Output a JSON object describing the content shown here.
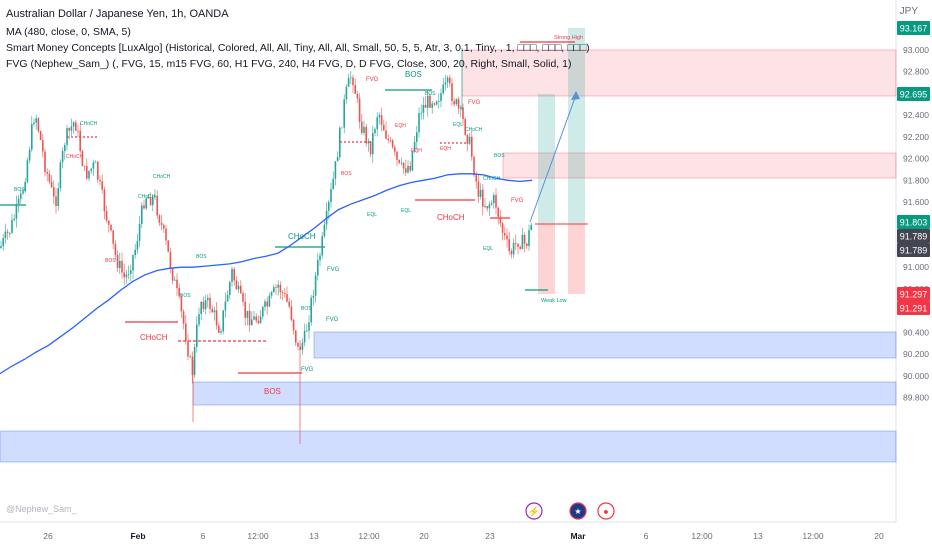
{
  "header": {
    "title": "Australian Dollar / Japanese Yen, 1h, OANDA",
    "indicator_ma": "MA (480, close, 0, SMA, 5)",
    "indicator_smc": "Smart Money Concepts [LuxAlgo] (Historical, Colored, All, All, Tiny, All, All, Small, 50, 5, 5, Atr, 3, 0.1, Tiny, , 1, □□□, □□□, □□□)",
    "indicator_fvg": "FVG (Nephew_Sam_) (, FVG, 15, m15 FVG, 60, H1 FVG, 240, H4 FVG, D, D FVG, Close, 300, 20, Right, Small, Solid, 1)"
  },
  "currency": "JPY",
  "watermark": "@Nephew_Sam_",
  "colors": {
    "bull": "#26a69a",
    "bear": "#ef5350",
    "bos_green": "#089981",
    "bos_red": "#f23645",
    "ma_line": "#2962ff",
    "fvg_blue": "rgba(41,98,255,0.22)",
    "zone_red": "rgba(242,54,69,0.15)",
    "green_label": "#089981",
    "gray_label": "#434651",
    "red_label": "#f23645"
  },
  "chart_data": {
    "type": "candlestick",
    "y_ticks": [
      "93.000",
      "92.800",
      "92.600",
      "92.400",
      "92.200",
      "92.000",
      "91.800",
      "91.600",
      "91.400",
      "91.200",
      "91.000",
      "90.800",
      "90.600",
      "90.400",
      "90.200",
      "90.000",
      "89.800"
    ],
    "y_min": 89.7,
    "y_max": 93.35,
    "x_ticks": [
      "26",
      "Feb",
      "6",
      "12:00",
      "13",
      "12:00",
      "20",
      "23",
      "Mar",
      "6",
      "12:00",
      "13",
      "12:00",
      "20"
    ],
    "price_labels": [
      {
        "value": "93.167",
        "color": "green"
      },
      {
        "value": "92.695",
        "color": "green"
      },
      {
        "value": "91.803",
        "color": "green"
      },
      {
        "value": "91.789",
        "color": "gray"
      },
      {
        "value": "91.789",
        "color": "gray"
      },
      {
        "value": "91.297",
        "color": "red"
      },
      {
        "value": "91.291",
        "color": "red"
      }
    ],
    "annotations": [
      {
        "text": "Strong High",
        "color": "red"
      },
      {
        "text": "Weak Low",
        "color": "green"
      },
      {
        "text": "BOS",
        "color": "green"
      },
      {
        "text": "BOS",
        "color": "red"
      },
      {
        "text": "CHoCH",
        "color": "green"
      },
      {
        "text": "CHoCH",
        "color": "red"
      },
      {
        "text": "CHoCH",
        "color": "red"
      },
      {
        "text": "FVG",
        "color": "green"
      },
      {
        "text": "FVG",
        "color": "green"
      },
      {
        "text": "FVG",
        "color": "green"
      },
      {
        "text": "FVG",
        "color": "red"
      },
      {
        "text": "FVG",
        "color": "red"
      },
      {
        "text": "FVG",
        "color": "red"
      }
    ],
    "tiny_labels": [
      "CHoCH",
      "CHoCH",
      "CHoCH",
      "BOS",
      "BOS",
      "BOS",
      "EQL",
      "EQL",
      "EQL",
      "EQH",
      "EQH",
      "BOS",
      "CHoCH",
      "BOS",
      "BOS",
      "CHoCH",
      "EQL",
      "BOS",
      "BOS",
      "EQH",
      "CHoCH"
    ],
    "ma_series": [
      90.02,
      90.09,
      90.15,
      90.22,
      90.28,
      90.36,
      90.44,
      90.53,
      90.62,
      90.7,
      90.79,
      90.87,
      90.93,
      90.97,
      90.99,
      91.0,
      91.0,
      91.01,
      91.02,
      91.03,
      91.05,
      91.08,
      91.1,
      91.13,
      91.2,
      91.28,
      91.36,
      91.45,
      91.53,
      91.58,
      91.62,
      91.66,
      91.71,
      91.75,
      91.78,
      91.8,
      91.82,
      91.85,
      91.86,
      91.86,
      91.85,
      91.82,
      91.8,
      91.79,
      91.8
    ]
  },
  "event_icons": [
    {
      "name": "lightning-icon",
      "glyph": "⚡",
      "color": "#9c27b0"
    },
    {
      "name": "australia-flag-icon",
      "glyph": "★",
      "color": "#1e3a8a"
    },
    {
      "name": "red-dot-icon",
      "glyph": "●",
      "color": "#f23645"
    }
  ]
}
